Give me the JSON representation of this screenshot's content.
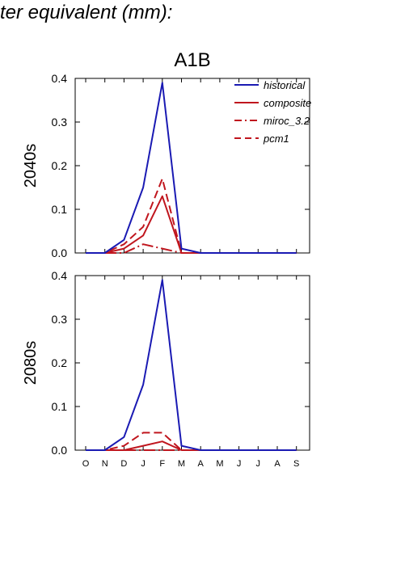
{
  "heading": "ter equivalent (mm):",
  "chart_title": "A1B",
  "colors": {
    "historical": "#1a1ab3",
    "scenario": "#c0161e"
  },
  "legend": [
    {
      "name": "historical",
      "style": "solid",
      "color": "#1a1ab3"
    },
    {
      "name": "composite",
      "style": "solid",
      "color": "#c0161e"
    },
    {
      "name": "miroc_3.2",
      "style": "dashdot",
      "color": "#c0161e"
    },
    {
      "name": "pcm1",
      "style": "dashed",
      "color": "#c0161e"
    }
  ],
  "chart_data": [
    {
      "type": "line",
      "title": "A1B",
      "ylabel": "2040s",
      "categories": [
        "O",
        "N",
        "D",
        "J",
        "F",
        "M",
        "A",
        "M",
        "J",
        "J",
        "A",
        "S"
      ],
      "ylim": [
        0,
        0.4
      ],
      "yticks": [
        "0.0",
        "0.1",
        "0.2",
        "0.3",
        "0.4"
      ],
      "legend_position": "top-right",
      "series": [
        {
          "name": "historical",
          "values": [
            0,
            0,
            0.03,
            0.15,
            0.39,
            0.01,
            0,
            0,
            0,
            0,
            0,
            0
          ]
        },
        {
          "name": "composite",
          "values": [
            0,
            0,
            0.01,
            0.04,
            0.13,
            0,
            0,
            0,
            0,
            0,
            0,
            0
          ]
        },
        {
          "name": "miroc_3.2",
          "values": [
            0,
            0,
            0,
            0.02,
            0.01,
            0,
            0,
            0,
            0,
            0,
            0,
            0
          ]
        },
        {
          "name": "pcm1",
          "values": [
            0,
            0,
            0.02,
            0.06,
            0.17,
            0,
            0,
            0,
            0,
            0,
            0,
            0
          ]
        }
      ]
    },
    {
      "type": "line",
      "ylabel": "2080s",
      "categories": [
        "O",
        "N",
        "D",
        "J",
        "F",
        "M",
        "A",
        "M",
        "J",
        "J",
        "A",
        "S"
      ],
      "ylim": [
        0,
        0.4
      ],
      "yticks": [
        "0.0",
        "0.1",
        "0.2",
        "0.3",
        "0.4"
      ],
      "series": [
        {
          "name": "historical",
          "values": [
            0,
            0,
            0.03,
            0.15,
            0.39,
            0.01,
            0,
            0,
            0,
            0,
            0,
            0
          ]
        },
        {
          "name": "composite",
          "values": [
            0,
            0,
            0,
            0.01,
            0.02,
            0,
            0,
            0,
            0,
            0,
            0,
            0
          ]
        },
        {
          "name": "miroc_3.2",
          "values": [
            0,
            0,
            0,
            0,
            0,
            0,
            0,
            0,
            0,
            0,
            0,
            0
          ]
        },
        {
          "name": "pcm1",
          "values": [
            0,
            0,
            0.01,
            0.04,
            0.04,
            0,
            0,
            0,
            0,
            0,
            0,
            0
          ]
        }
      ]
    }
  ]
}
